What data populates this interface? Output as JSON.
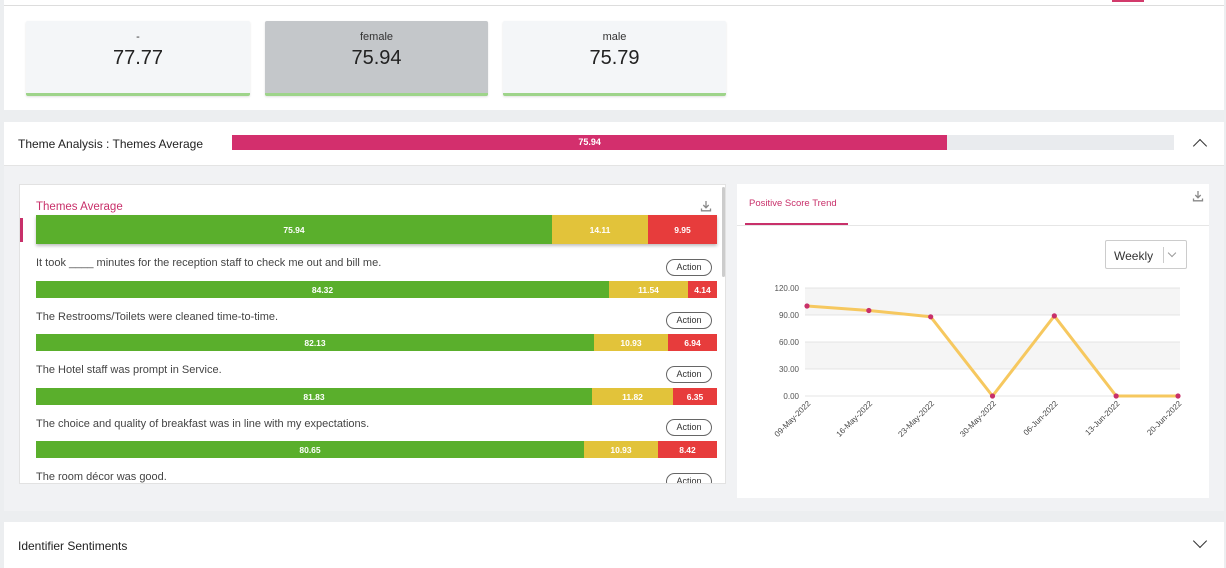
{
  "gender_cards": [
    {
      "label": "-",
      "value": "77.77",
      "active": false
    },
    {
      "label": "female",
      "value": "75.94",
      "active": true
    },
    {
      "label": "male",
      "value": "75.79",
      "active": false
    }
  ],
  "theme_analysis": {
    "title": "Theme Analysis : Themes Average",
    "value": "75.94",
    "fill_percent": 75.94
  },
  "themes_panel": {
    "title": "Themes Average",
    "average": {
      "green": "75.94",
      "yellow": "14.11",
      "red": "9.95"
    },
    "action_label": "Action",
    "questions": [
      {
        "text": "It took ____ minutes for the reception staff to check me out and bill me.",
        "green": "84.32",
        "yellow": "11.54",
        "red": "4.14"
      },
      {
        "text": "The Restrooms/Toilets were cleaned time-to-time.",
        "green": "82.13",
        "yellow": "10.93",
        "red": "6.94"
      },
      {
        "text": "The Hotel staff was prompt in Service.",
        "green": "81.83",
        "yellow": "11.82",
        "red": "6.35"
      },
      {
        "text": "The choice and quality of breakfast was in line with my expectations.",
        "green": "80.65",
        "yellow": "10.93",
        "red": "8.42"
      },
      {
        "text": "The  room décor was good.",
        "green": "",
        "yellow": "",
        "red": ""
      }
    ]
  },
  "trend_panel": {
    "tab_label": "Positive Score Trend",
    "period_select": "Weekly"
  },
  "chart_data": {
    "type": "line",
    "x": [
      "09-May-2022",
      "16-May-2022",
      "23-May-2022",
      "30-May-2022",
      "06-Jun-2022",
      "13-Jun-2022",
      "20-Jun-2022"
    ],
    "y": [
      100,
      95,
      88,
      0,
      89,
      0,
      0
    ],
    "y_ticks": [
      "0.00",
      "30.00",
      "60.00",
      "90.00",
      "120.00"
    ],
    "ylim": [
      0,
      120
    ],
    "line_color": "#f6c85f",
    "marker_color": "#c8306a",
    "grid": true
  },
  "identifier": {
    "title": "Identifier Sentiments"
  },
  "colors": {
    "accent": "#c8306a",
    "positive": "#5aaf2c",
    "neutral": "#e2c33a",
    "negative": "#e73c3c"
  }
}
